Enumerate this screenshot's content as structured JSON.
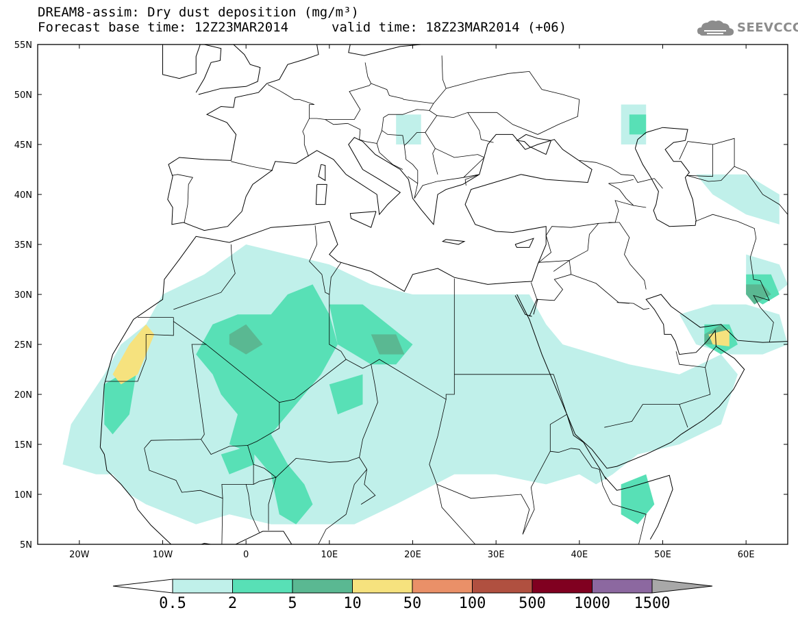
{
  "header": {
    "title_line1": "DREAM8-assim: Dry dust deposition (mg/m³)",
    "title_line2": "Forecast base time: 12Z23MAR2014",
    "valid_time": "valid time: 18Z23MAR2014 (+06)",
    "logo_text": "SEEVCCC",
    "logo_icon": "cloud-icon"
  },
  "map": {
    "projection": "lat-lon",
    "lon_range": [
      -25,
      65
    ],
    "lat_range": [
      5,
      55
    ],
    "x_ticks": [
      {
        "value": -20,
        "label": "20W"
      },
      {
        "value": -10,
        "label": "10W"
      },
      {
        "value": 0,
        "label": "0"
      },
      {
        "value": 10,
        "label": "10E"
      },
      {
        "value": 20,
        "label": "20E"
      },
      {
        "value": 30,
        "label": "30E"
      },
      {
        "value": 40,
        "label": "40E"
      },
      {
        "value": 50,
        "label": "50E"
      },
      {
        "value": 60,
        "label": "60E"
      }
    ],
    "y_ticks": [
      {
        "value": 55,
        "label": "55N"
      },
      {
        "value": 50,
        "label": "50N"
      },
      {
        "value": 45,
        "label": "45N"
      },
      {
        "value": 40,
        "label": "40N"
      },
      {
        "value": 35,
        "label": "35N"
      },
      {
        "value": 30,
        "label": "30N"
      },
      {
        "value": 25,
        "label": "25N"
      },
      {
        "value": 20,
        "label": "20N"
      },
      {
        "value": 15,
        "label": "15N"
      },
      {
        "value": 10,
        "label": "10N"
      },
      {
        "value": 5,
        "label": "5N"
      }
    ]
  },
  "colorbar": {
    "colors": [
      "#c0f0ea",
      "#58e0b6",
      "#5ab892",
      "#f6e27e",
      "#ea9068",
      "#b05040",
      "#800020",
      "#8c68a0",
      "#a8a8a8"
    ],
    "labels": [
      "0.5",
      "2",
      "5",
      "10",
      "50",
      "100",
      "500",
      "1000",
      "1500"
    ]
  },
  "chart_data": {
    "type": "heatmap",
    "variable": "Dry dust deposition",
    "units": "mg/m³",
    "levels": [
      0.5,
      2,
      5,
      10,
      50,
      100,
      500,
      1000,
      1500
    ],
    "regions": [
      {
        "level": 0.5,
        "poly": [
          [
            -21,
            17
          ],
          [
            -17,
            22
          ],
          [
            -15,
            25
          ],
          [
            -12,
            27
          ],
          [
            -10,
            30
          ],
          [
            -5,
            32
          ],
          [
            0,
            35
          ],
          [
            5,
            34
          ],
          [
            10,
            33
          ],
          [
            15,
            31
          ],
          [
            20,
            30
          ],
          [
            25,
            30
          ],
          [
            30,
            30
          ],
          [
            34,
            30
          ],
          [
            36,
            27
          ],
          [
            38,
            25
          ],
          [
            42,
            24
          ],
          [
            46,
            23
          ],
          [
            52,
            22
          ],
          [
            57,
            24
          ],
          [
            59,
            22
          ],
          [
            57,
            17
          ],
          [
            52,
            15
          ],
          [
            47,
            14
          ],
          [
            44,
            12
          ],
          [
            42,
            11
          ],
          [
            40,
            12
          ],
          [
            36,
            11
          ],
          [
            30,
            12
          ],
          [
            25,
            12
          ],
          [
            18,
            9
          ],
          [
            13,
            7
          ],
          [
            8,
            7
          ],
          [
            3,
            7
          ],
          [
            -2,
            8
          ],
          [
            -6,
            7
          ],
          [
            -9,
            8
          ],
          [
            -12,
            9
          ],
          [
            -14,
            10
          ],
          [
            -16,
            12
          ],
          [
            -18,
            12
          ],
          [
            -22,
            13
          ]
        ]
      },
      {
        "level": 0.5,
        "poly": [
          [
            -17,
            15
          ],
          [
            -13,
            13
          ],
          [
            -8,
            14
          ],
          [
            -8,
            18
          ],
          [
            -13,
            19
          ],
          [
            -17,
            18
          ]
        ]
      },
      {
        "level": 0.5,
        "poly": [
          [
            52,
            28
          ],
          [
            56,
            29
          ],
          [
            60,
            29
          ],
          [
            64,
            28
          ],
          [
            65,
            25
          ],
          [
            62,
            24
          ],
          [
            58,
            24
          ],
          [
            54,
            25
          ]
        ]
      },
      {
        "level": 0.5,
        "poly": [
          [
            60,
            34
          ],
          [
            64,
            33
          ],
          [
            65,
            31
          ],
          [
            62,
            29
          ],
          [
            60,
            30
          ]
        ]
      },
      {
        "level": 0.5,
        "poly": [
          [
            18,
            48
          ],
          [
            21,
            48
          ],
          [
            21,
            45
          ],
          [
            18,
            45
          ]
        ]
      },
      {
        "level": 0.5,
        "poly": [
          [
            45,
            49
          ],
          [
            48,
            49
          ],
          [
            48,
            45
          ],
          [
            45,
            45
          ]
        ]
      },
      {
        "level": 0.5,
        "poly": [
          [
            54,
            42
          ],
          [
            60,
            42
          ],
          [
            64,
            40
          ],
          [
            64,
            37
          ],
          [
            60,
            38
          ],
          [
            56,
            40
          ]
        ]
      },
      {
        "level": 2,
        "poly": [
          [
            -6,
            24
          ],
          [
            -4,
            27
          ],
          [
            -1,
            28
          ],
          [
            3,
            28
          ],
          [
            5,
            30
          ],
          [
            8,
            31
          ],
          [
            10,
            28
          ],
          [
            11,
            25
          ],
          [
            9,
            22
          ],
          [
            6,
            19
          ],
          [
            4,
            17
          ],
          [
            3,
            16
          ],
          [
            5,
            13
          ],
          [
            7,
            11
          ],
          [
            8,
            9
          ],
          [
            6,
            7
          ],
          [
            4,
            8
          ],
          [
            3,
            12
          ],
          [
            1,
            14
          ],
          [
            -2,
            15
          ],
          [
            -1,
            18
          ],
          [
            -3,
            20
          ],
          [
            -4,
            22
          ]
        ]
      },
      {
        "level": 2,
        "poly": [
          [
            10,
            29
          ],
          [
            14,
            29
          ],
          [
            17,
            27
          ],
          [
            20,
            25
          ],
          [
            18,
            23
          ],
          [
            15,
            23
          ],
          [
            11,
            25
          ]
        ]
      },
      {
        "level": 2,
        "poly": [
          [
            10,
            21
          ],
          [
            14,
            22
          ],
          [
            14,
            19
          ],
          [
            11,
            18
          ]
        ]
      },
      {
        "level": 2,
        "poly": [
          [
            -17,
            21
          ],
          [
            -15,
            22
          ],
          [
            -13,
            23
          ],
          [
            -14,
            18
          ],
          [
            -16,
            16
          ],
          [
            -17,
            17
          ]
        ]
      },
      {
        "level": 2,
        "poly": [
          [
            -3,
            14
          ],
          [
            1,
            15
          ],
          [
            1,
            13
          ],
          [
            -2,
            12
          ]
        ]
      },
      {
        "level": 2,
        "poly": [
          [
            55,
            27
          ],
          [
            58,
            27
          ],
          [
            59,
            25
          ],
          [
            57,
            24
          ],
          [
            55,
            25
          ]
        ]
      },
      {
        "level": 2,
        "poly": [
          [
            60,
            32
          ],
          [
            63,
            32
          ],
          [
            64,
            30
          ],
          [
            62,
            29
          ],
          [
            60,
            30
          ]
        ]
      },
      {
        "level": 2,
        "poly": [
          [
            45,
            11
          ],
          [
            48,
            12
          ],
          [
            49,
            9
          ],
          [
            47,
            7
          ],
          [
            45,
            8
          ]
        ]
      },
      {
        "level": 2,
        "poly": [
          [
            46,
            48
          ],
          [
            48,
            48
          ],
          [
            48,
            46
          ],
          [
            46,
            46
          ]
        ]
      },
      {
        "level": 5,
        "poly": [
          [
            -2,
            26
          ],
          [
            0,
            27
          ],
          [
            2,
            25
          ],
          [
            0,
            24
          ],
          [
            -2,
            25
          ]
        ]
      },
      {
        "level": 5,
        "poly": [
          [
            15,
            26
          ],
          [
            18,
            26
          ],
          [
            19,
            24
          ],
          [
            16,
            24
          ]
        ]
      },
      {
        "level": 5,
        "poly": [
          [
            55,
            26
          ],
          [
            57,
            27
          ],
          [
            58,
            26
          ],
          [
            57,
            25
          ],
          [
            55,
            25
          ]
        ]
      },
      {
        "level": 5,
        "poly": [
          [
            60,
            31
          ],
          [
            62,
            31
          ],
          [
            63,
            30
          ],
          [
            61,
            29
          ],
          [
            60,
            30
          ]
        ]
      },
      {
        "level": 10,
        "poly": [
          [
            -16,
            22
          ],
          [
            -14,
            25
          ],
          [
            -12,
            27
          ],
          [
            -11,
            26
          ],
          [
            -12,
            24
          ],
          [
            -13,
            22
          ],
          [
            -15,
            21
          ]
        ]
      },
      {
        "level": 10,
        "poly": [
          [
            55.5,
            26
          ],
          [
            58,
            26.5
          ],
          [
            58,
            24.8
          ],
          [
            56,
            25
          ]
        ]
      }
    ]
  }
}
